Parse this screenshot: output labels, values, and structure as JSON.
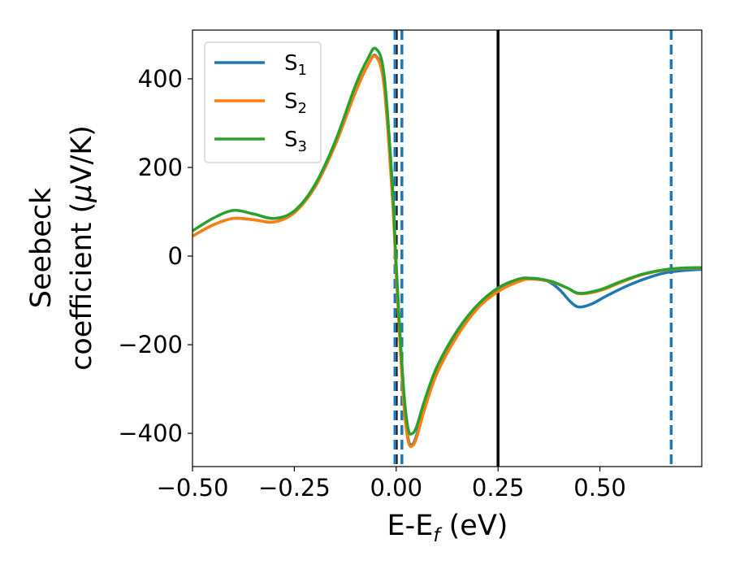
{
  "chart_data": {
    "type": "line",
    "xlabel": {
      "main": "E-E",
      "sub": "f",
      "unit": " (eV)"
    },
    "ylabel": {
      "line1": "Seebeck",
      "line2": "coefficient  (",
      "mu": "μ",
      "unit": "V/K)"
    },
    "xlim": [
      -0.5,
      0.75
    ],
    "ylim": [
      -475,
      510
    ],
    "xticks": [
      -0.5,
      -0.25,
      0.0,
      0.25,
      0.5
    ],
    "xtick_labels": [
      "−0.50",
      "−0.25",
      "0.00",
      "0.25",
      "0.50"
    ],
    "yticks": [
      -400,
      -200,
      0,
      200,
      400
    ],
    "ytick_labels": [
      "−400",
      "−200",
      "0",
      "200",
      "400"
    ],
    "grid": false,
    "legend_placement": "top-left",
    "series": [
      {
        "name": "S",
        "sub": "1",
        "color": "#1f77b4",
        "points": [
          [
            -0.5,
            45
          ],
          [
            -0.45,
            70
          ],
          [
            -0.4,
            85
          ],
          [
            -0.35,
            82
          ],
          [
            -0.3,
            77
          ],
          [
            -0.25,
            98
          ],
          [
            -0.2,
            155
          ],
          [
            -0.15,
            250
          ],
          [
            -0.1,
            370
          ],
          [
            -0.07,
            430
          ],
          [
            -0.05,
            452
          ],
          [
            -0.03,
            390
          ],
          [
            -0.01,
            150
          ],
          [
            0.0,
            -30
          ],
          [
            0.01,
            -200
          ],
          [
            0.02,
            -340
          ],
          [
            0.03,
            -415
          ],
          [
            0.04,
            -425
          ],
          [
            0.05,
            -405
          ],
          [
            0.07,
            -340
          ],
          [
            0.1,
            -260
          ],
          [
            0.15,
            -175
          ],
          [
            0.2,
            -115
          ],
          [
            0.25,
            -78
          ],
          [
            0.3,
            -55
          ],
          [
            0.33,
            -50
          ],
          [
            0.37,
            -56
          ],
          [
            0.4,
            -75
          ],
          [
            0.43,
            -105
          ],
          [
            0.45,
            -115
          ],
          [
            0.48,
            -108
          ],
          [
            0.52,
            -88
          ],
          [
            0.58,
            -62
          ],
          [
            0.65,
            -40
          ],
          [
            0.7,
            -33
          ],
          [
            0.75,
            -30
          ]
        ]
      },
      {
        "name": "S",
        "sub": "2",
        "color": "#ff7f0e",
        "points": [
          [
            -0.5,
            45
          ],
          [
            -0.45,
            70
          ],
          [
            -0.4,
            85
          ],
          [
            -0.35,
            82
          ],
          [
            -0.3,
            77
          ],
          [
            -0.25,
            98
          ],
          [
            -0.2,
            155
          ],
          [
            -0.15,
            250
          ],
          [
            -0.1,
            370
          ],
          [
            -0.07,
            430
          ],
          [
            -0.05,
            450
          ],
          [
            -0.03,
            385
          ],
          [
            -0.01,
            140
          ],
          [
            0.0,
            -40
          ],
          [
            0.01,
            -210
          ],
          [
            0.02,
            -350
          ],
          [
            0.03,
            -420
          ],
          [
            0.04,
            -428
          ],
          [
            0.05,
            -410
          ],
          [
            0.07,
            -345
          ],
          [
            0.1,
            -265
          ],
          [
            0.15,
            -180
          ],
          [
            0.2,
            -118
          ],
          [
            0.25,
            -80
          ],
          [
            0.3,
            -58
          ],
          [
            0.33,
            -52
          ],
          [
            0.38,
            -58
          ],
          [
            0.42,
            -72
          ],
          [
            0.45,
            -85
          ],
          [
            0.5,
            -78
          ],
          [
            0.55,
            -60
          ],
          [
            0.6,
            -43
          ],
          [
            0.65,
            -33
          ],
          [
            0.7,
            -28
          ],
          [
            0.75,
            -27
          ]
        ]
      },
      {
        "name": "S",
        "sub": "3",
        "color": "#2ca02c",
        "points": [
          [
            -0.5,
            57
          ],
          [
            -0.45,
            85
          ],
          [
            -0.4,
            103
          ],
          [
            -0.35,
            95
          ],
          [
            -0.3,
            85
          ],
          [
            -0.25,
            102
          ],
          [
            -0.2,
            160
          ],
          [
            -0.15,
            258
          ],
          [
            -0.1,
            385
          ],
          [
            -0.07,
            445
          ],
          [
            -0.05,
            468
          ],
          [
            -0.03,
            410
          ],
          [
            -0.01,
            170
          ],
          [
            0.0,
            -20
          ],
          [
            0.01,
            -185
          ],
          [
            0.02,
            -320
          ],
          [
            0.03,
            -393
          ],
          [
            0.04,
            -400
          ],
          [
            0.05,
            -385
          ],
          [
            0.07,
            -325
          ],
          [
            0.1,
            -250
          ],
          [
            0.15,
            -168
          ],
          [
            0.2,
            -110
          ],
          [
            0.25,
            -72
          ],
          [
            0.3,
            -52
          ],
          [
            0.33,
            -50
          ],
          [
            0.38,
            -57
          ],
          [
            0.42,
            -72
          ],
          [
            0.45,
            -84
          ],
          [
            0.5,
            -76
          ],
          [
            0.55,
            -58
          ],
          [
            0.6,
            -42
          ],
          [
            0.65,
            -32
          ],
          [
            0.7,
            -27
          ],
          [
            0.75,
            -26
          ]
        ]
      }
    ],
    "vlines": [
      {
        "x": 0.0,
        "style": "dashed",
        "color": "#000000"
      },
      {
        "x": -0.003,
        "style": "dashed",
        "color": "#1f77b4"
      },
      {
        "x": 0.014,
        "style": "dashed",
        "color": "#1f77b4"
      },
      {
        "x": 0.25,
        "style": "solid",
        "color": "#000000"
      },
      {
        "x": 0.675,
        "style": "dashed",
        "color": "#1f77b4"
      }
    ]
  }
}
